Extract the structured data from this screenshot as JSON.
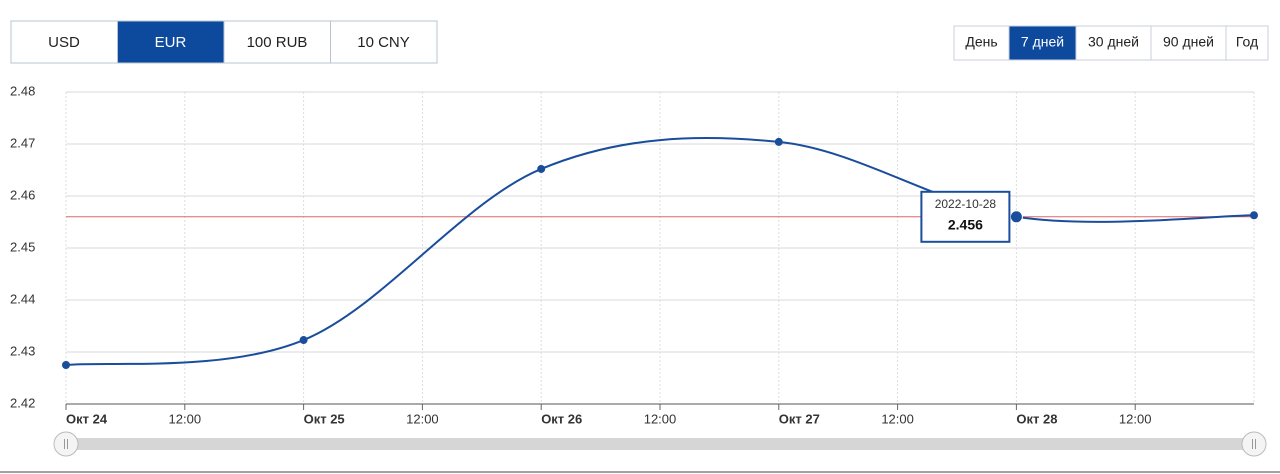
{
  "currency_tabs": [
    "USD",
    "EUR",
    "100 RUB",
    "10 CNY"
  ],
  "active_currency": 1,
  "period_tabs": [
    "День",
    "7 дней",
    "30 дней",
    "90 дней",
    "Год"
  ],
  "active_period": 1,
  "chart_data": {
    "type": "line",
    "x": [
      24,
      25,
      26,
      27,
      28,
      29
    ],
    "series": [
      {
        "name": "EUR",
        "color": "#1a4e9c",
        "values": [
          2.4275,
          2.4323,
          2.4652,
          2.4704,
          2.456,
          2.4563
        ]
      }
    ],
    "xlim": [
      24,
      29
    ],
    "xticks": [
      {
        "value": 24,
        "label": "Окт 24"
      },
      {
        "value": 24.5,
        "label": "12:00"
      },
      {
        "value": 25,
        "label": "Окт 25"
      },
      {
        "value": 25.5,
        "label": "12:00"
      },
      {
        "value": 26,
        "label": "Окт 26"
      },
      {
        "value": 26.5,
        "label": "12:00"
      },
      {
        "value": 27,
        "label": "Окт 27"
      },
      {
        "value": 27.5,
        "label": "12:00"
      },
      {
        "value": 28,
        "label": "Окт 28"
      },
      {
        "value": 28.5,
        "label": "12:00"
      }
    ],
    "ylim": [
      2.42,
      2.48
    ],
    "yticks": [
      2.42,
      2.43,
      2.44,
      2.45,
      2.46,
      2.47,
      2.48
    ],
    "reference_line": {
      "value": 2.456,
      "color": "#e06666"
    },
    "grid": true,
    "tooltip": {
      "date": "2022-10-28",
      "point": 4
    }
  }
}
